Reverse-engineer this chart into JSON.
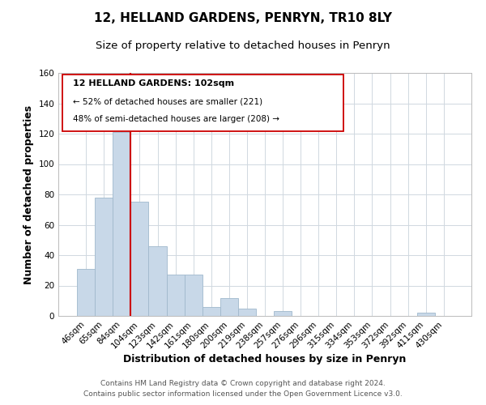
{
  "title": "12, HELLAND GARDENS, PENRYN, TR10 8LY",
  "subtitle": "Size of property relative to detached houses in Penryn",
  "xlabel": "Distribution of detached houses by size in Penryn",
  "ylabel": "Number of detached properties",
  "categories": [
    "46sqm",
    "65sqm",
    "84sqm",
    "104sqm",
    "123sqm",
    "142sqm",
    "161sqm",
    "180sqm",
    "200sqm",
    "219sqm",
    "238sqm",
    "257sqm",
    "276sqm",
    "296sqm",
    "315sqm",
    "334sqm",
    "353sqm",
    "372sqm",
    "392sqm",
    "411sqm",
    "430sqm"
  ],
  "values": [
    31,
    78,
    121,
    75,
    46,
    27,
    27,
    6,
    12,
    5,
    0,
    3,
    0,
    0,
    0,
    0,
    0,
    0,
    0,
    2,
    0
  ],
  "bar_color": "#c8d8e8",
  "bar_edge_color": "#a0b8cc",
  "highlight_line_color": "#cc0000",
  "highlight_line_index": 3,
  "ylim": [
    0,
    160
  ],
  "yticks": [
    0,
    20,
    40,
    60,
    80,
    100,
    120,
    140,
    160
  ],
  "annotation_title": "12 HELLAND GARDENS: 102sqm",
  "annotation_line1": "← 52% of detached houses are smaller (221)",
  "annotation_line2": "48% of semi-detached houses are larger (208) →",
  "footer_line1": "Contains HM Land Registry data © Crown copyright and database right 2024.",
  "footer_line2": "Contains public sector information licensed under the Open Government Licence v3.0.",
  "background_color": "#ffffff",
  "grid_color": "#d0d8e0",
  "title_fontsize": 11,
  "subtitle_fontsize": 9.5,
  "axis_label_fontsize": 9,
  "tick_fontsize": 7.5,
  "footer_fontsize": 6.5,
  "ann_fontsize_title": 8,
  "ann_fontsize_body": 7.5
}
